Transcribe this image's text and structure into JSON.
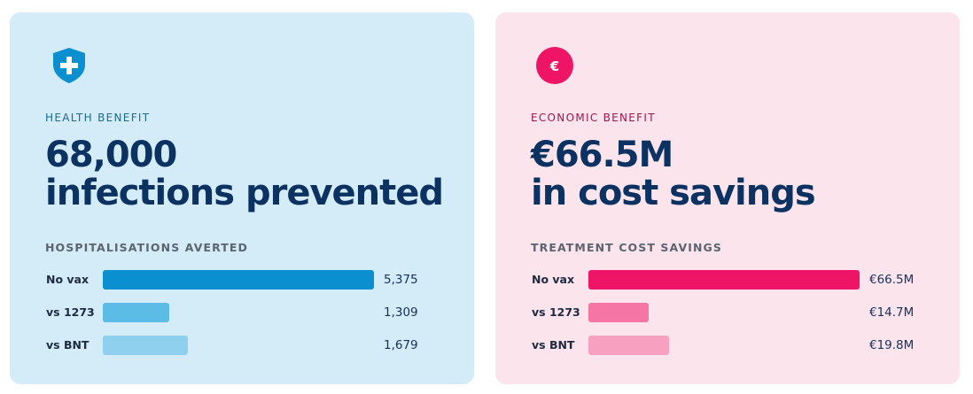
{
  "health": {
    "eyebrow": "HEALTH BENEFIT",
    "headline_line1": "68,000",
    "headline_line2": "infections prevented",
    "section_title": "HOSPITALISATIONS AVERTED",
    "icon": "shield-plus-icon",
    "accent": "#0a8fd1",
    "rows": [
      {
        "label": "No vax",
        "value": 5375,
        "display": "5,375",
        "color": "#0a8fd1"
      },
      {
        "label": "vs 1273",
        "value": 1309,
        "display": "1,309",
        "color": "#5cbce6"
      },
      {
        "label": "vs BNT",
        "value": 1679,
        "display": "1,679",
        "color": "#8fd0ee"
      }
    ]
  },
  "economic": {
    "eyebrow": "ECONOMIC BENEFIT",
    "headline_line1": "€66.5M",
    "headline_line2": "in cost savings",
    "section_title": "TREATMENT COST SAVINGS",
    "icon": "euro-coin-icon",
    "accent": "#ee1566",
    "icon_glyph": "€",
    "rows": [
      {
        "label": "No vax",
        "value": 66.5,
        "display": "€66.5M",
        "color": "#ee1566"
      },
      {
        "label": "vs 1273",
        "value": 14.7,
        "display": "€14.7M",
        "color": "#f576a5"
      },
      {
        "label": "vs BNT",
        "value": 19.8,
        "display": "€19.8M",
        "color": "#f7a0c0"
      }
    ]
  },
  "chart_data": [
    {
      "type": "bar",
      "title": "HOSPITALISATIONS AVERTED",
      "categories": [
        "No vax",
        "vs 1273",
        "vs BNT"
      ],
      "values": [
        5375,
        1309,
        1679
      ]
    },
    {
      "type": "bar",
      "title": "TREATMENT COST SAVINGS",
      "categories": [
        "No vax",
        "vs 1273",
        "vs BNT"
      ],
      "values": [
        66.5,
        14.7,
        19.8
      ]
    }
  ]
}
